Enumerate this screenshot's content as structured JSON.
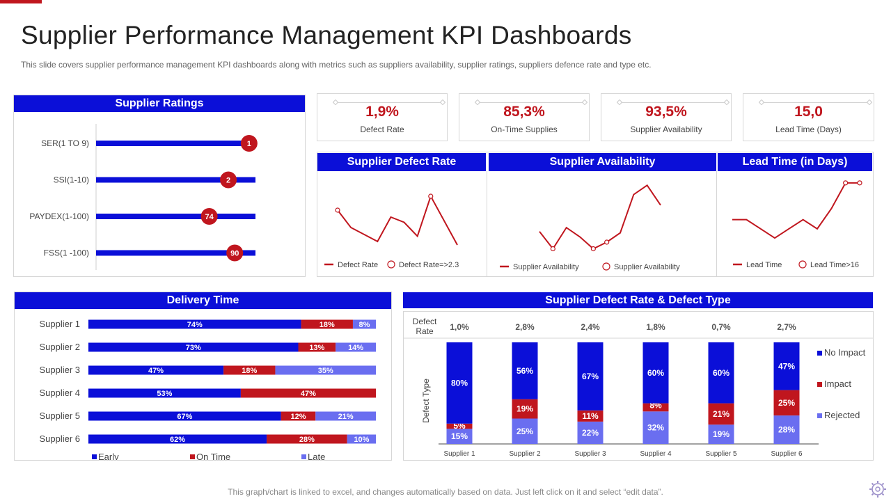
{
  "page": {
    "title": "Supplier Performance Management KPI Dashboards",
    "subtitle": "This slide covers supplier performance management KPI dashboards along with metrics such as suppliers availability, supplier ratings, suppliers defence rate and type  etc.",
    "footer": "This graph/chart is linked to excel, and changes automatically based on data. Just left click on it and select “edit data”.",
    "accent": "#c0161e",
    "blue": "#0b0fd8",
    "light_blue": "#6a6ef0"
  },
  "kpis": [
    {
      "value": "1,9%",
      "label": "Defect Rate"
    },
    {
      "value": "85,3%",
      "label": "On-Time Supplies"
    },
    {
      "value": "93,5%",
      "label": "Supplier Availability"
    },
    {
      "value": "15,0",
      "label": "Lead Time (Days)"
    }
  ],
  "chart_data": [
    {
      "type": "bar",
      "orientation": "horizontal",
      "title": "Supplier Ratings",
      "categories": [
        "SER(1 TO 9)",
        "SSI(1-10)",
        "PAYDEX(1-100)",
        "FSS(1 -100)"
      ],
      "values": [
        1,
        2,
        74,
        90
      ],
      "marker_fraction": [
        0.96,
        0.83,
        0.71,
        0.87
      ],
      "labels": [
        "1",
        "2",
        "74",
        "90"
      ]
    },
    {
      "type": "line",
      "title": "Supplier Defect Rate",
      "y": [
        2.6,
        1.6,
        1.2,
        0.8,
        2.2,
        1.9,
        1.1,
        3.4,
        2.0,
        0.6
      ],
      "marker_indices": [
        0,
        7
      ],
      "ylim": [
        0,
        4
      ],
      "legend": [
        "Defect Rate",
        "Defect Rate=>2.3"
      ]
    },
    {
      "type": "line",
      "title": "Supplier Availability",
      "y": [
        1.8,
        0.5,
        2.1,
        1.4,
        0.5,
        1.0,
        1.7,
        4.6,
        5.3,
        3.8
      ],
      "marker_indices": [
        1,
        4,
        5
      ],
      "ylim": [
        0,
        6
      ],
      "legend": [
        "Supplier Availability",
        "Supplier Availability"
      ]
    },
    {
      "type": "line",
      "title": "Lead Time (in Days)",
      "y": [
        12,
        12,
        9.5,
        7,
        9.5,
        12,
        9.5,
        15,
        22,
        22
      ],
      "marker_indices": [
        8,
        9
      ],
      "ylim": [
        0,
        25
      ],
      "legend": [
        "Lead Time",
        "Lead Time>16"
      ]
    },
    {
      "type": "bar",
      "orientation": "horizontal",
      "stacked": true,
      "title": "Delivery Time",
      "categories": [
        "Supplier 1",
        "Supplier 2",
        "Supplier 3",
        "Supplier 4",
        "Supplier 5",
        "Supplier 6"
      ],
      "series": [
        {
          "name": "Early",
          "values": [
            74,
            73,
            47,
            53,
            67,
            62
          ],
          "color": "#0b0fd8"
        },
        {
          "name": "On Time",
          "values": [
            18,
            13,
            18,
            47,
            12,
            28
          ],
          "color": "#c0161e"
        },
        {
          "name": "Late",
          "values": [
            8,
            14,
            35,
            0,
            21,
            10
          ],
          "color": "#6a6ef0"
        }
      ]
    },
    {
      "type": "bar",
      "stacked": true,
      "title": "Supplier Defect Rate & Defect Type",
      "categories": [
        "Supplier 1",
        "Supplier 2",
        "Supplier 3",
        "Supplier 4",
        "Supplier 5",
        "Supplier 6"
      ],
      "defect_rate_label": [
        "Defect",
        "Rate"
      ],
      "defect_rates": [
        "1,0%",
        "2,8%",
        "2,4%",
        "1,8%",
        "0,7%",
        "2,7%"
      ],
      "ylabel": "Defect Type",
      "series": [
        {
          "name": "Rejected",
          "values": [
            15,
            25,
            22,
            32,
            19,
            28
          ],
          "color": "#6a6ef0"
        },
        {
          "name": "Impact",
          "values": [
            5,
            19,
            11,
            8,
            21,
            25
          ],
          "color": "#c0161e"
        },
        {
          "name": "No Impact",
          "values": [
            80,
            56,
            67,
            60,
            60,
            47
          ],
          "color": "#0b0fd8"
        }
      ]
    }
  ]
}
